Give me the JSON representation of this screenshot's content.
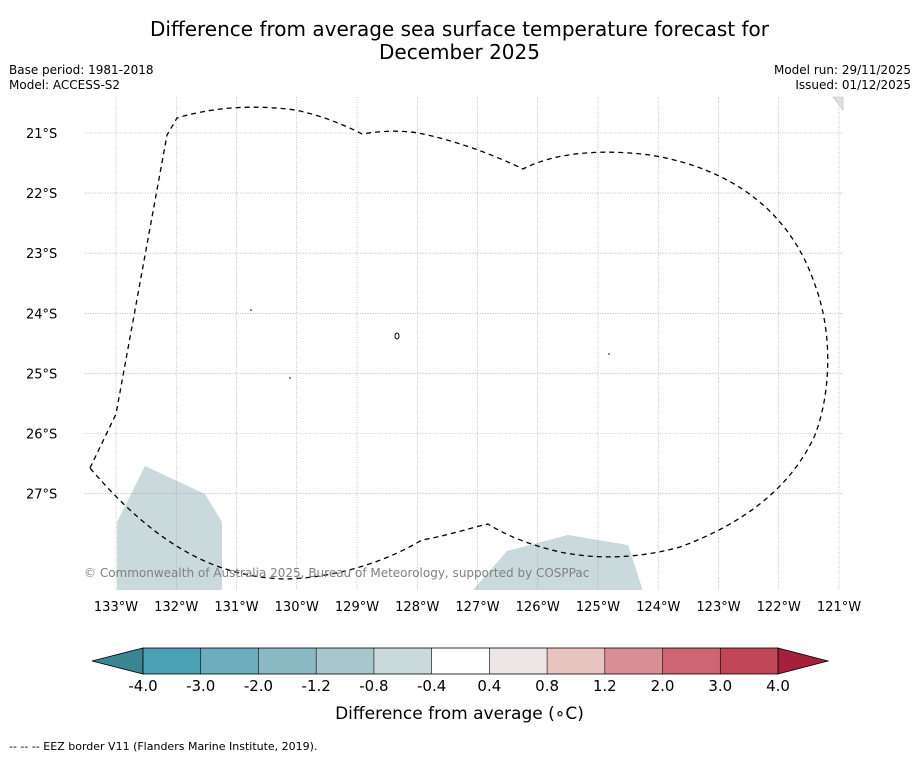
{
  "title": {
    "line1": "Difference from average sea surface temperature forecast for",
    "line2": "December 2025"
  },
  "meta": {
    "base_period": "Base period: 1981-2018",
    "model": "Model: ACCESS-S2",
    "model_run": "Model run: 29/11/2025",
    "issued": "Issued: 01/12/2025"
  },
  "map": {
    "lat_labels": [
      "21°S",
      "22°S",
      "23°S",
      "24°S",
      "25°S",
      "26°S",
      "27°S"
    ],
    "lon_labels": [
      "133°W",
      "132°W",
      "131°W",
      "130°W",
      "129°W",
      "128°W",
      "127°W",
      "126°W",
      "125°W",
      "124°W",
      "123°W",
      "122°W",
      "121°W"
    ],
    "copyright": "© Commonwealth of Australia 2025, Bureau of Meteorology, supported by COSPPac"
  },
  "colorbar": {
    "ticks": [
      "-4.0",
      "-3.0",
      "-2.0",
      "-1.2",
      "-0.8",
      "-0.4",
      "0.4",
      "0.8",
      "1.2",
      "2.0",
      "3.0",
      "4.0"
    ],
    "colors": [
      "#4aa1b4",
      "#6caebd",
      "#8ab9c4",
      "#a8c7cc",
      "#cad9dc",
      "#ffffff",
      "#eee6e6",
      "#e8c4c1",
      "#d98f96",
      "#cd6672",
      "#c14656"
    ],
    "under_color": "#3a8593",
    "over_color": "#a5203a",
    "label": "Difference from average (∘C)"
  },
  "footnote": "-- -- -- EEZ border V11 (Flanders Marine Institute, 2019).",
  "colors": {
    "anomaly_patch": "#cad9dc",
    "grid": "#999999"
  }
}
